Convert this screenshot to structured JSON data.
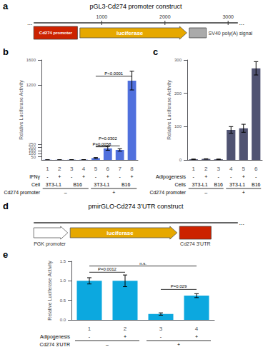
{
  "chart_data": [
    {
      "type": "diagram",
      "title": "a",
      "subtitle": "pGL3-Cd274 promoter construct",
      "annotations": [
        {
          "text": "...",
          "marker": "dots"
        },
        {
          "text": "1000",
          "marker": "tick"
        },
        {
          "text": "2000",
          "marker": "tick"
        },
        {
          "text": "3000",
          "marker": "tick"
        },
        {
          "text": "...",
          "marker": "dots"
        },
        {
          "text": "Cd274 promoter",
          "marker": "box-inside",
          "color": "#cc2200"
        },
        {
          "text": "luciferase",
          "marker": "arrow-inside",
          "color": "#E6A800"
        },
        {
          "text": "SV40 poly(A) signal",
          "marker": "box-right",
          "color": "#aaaaaa"
        }
      ]
    },
    {
      "type": "bar",
      "title": "b",
      "ylabel": "Relative Luciferase Activity",
      "categories": [
        "1",
        "2",
        "3",
        "4",
        "5",
        "6",
        "7",
        "8"
      ],
      "values": [
        2,
        2,
        3,
        4,
        30,
        185,
        160,
        1270
      ],
      "errors": [
        0.5,
        0.5,
        0.5,
        0.5,
        8,
        30,
        20,
        150
      ],
      "ylim": [
        0,
        1600
      ],
      "yticks": [
        0,
        50,
        100,
        150,
        200,
        250,
        1200,
        1600
      ],
      "grid": false,
      "annotations": [
        {
          "text": "P=0.0058",
          "from": "5",
          "to": "6",
          "y": 210
        },
        {
          "text": "P=0.0302",
          "from": "5",
          "to": "7",
          "y": 225
        },
        {
          "text": "P<0.0001",
          "from": "5",
          "to": "8",
          "y": 1340
        },
        {
          "row": 1,
          "text": "IFNγ"
        },
        {
          "row": 1,
          "text": "-",
          "from": "1",
          "to": "1"
        },
        {
          "row": 1,
          "text": "+",
          "from": "2",
          "to": "2"
        },
        {
          "row": 1,
          "text": "-",
          "from": "3",
          "to": "3"
        },
        {
          "row": 1,
          "text": "+",
          "from": "4",
          "to": "4"
        },
        {
          "row": 1,
          "text": "-",
          "from": "5",
          "to": "5"
        },
        {
          "row": 1,
          "text": "+",
          "from": "6",
          "to": "6"
        },
        {
          "row": 1,
          "text": "-",
          "from": "7",
          "to": "7"
        },
        {
          "row": 1,
          "text": "+",
          "from": "8",
          "to": "8"
        },
        {
          "row": 2,
          "text": "Cell"
        },
        {
          "row": 2,
          "text": "3T3-L1",
          "from": "1",
          "to": "2"
        },
        {
          "row": 2,
          "text": "B16",
          "from": "3",
          "to": "4"
        },
        {
          "row": 2,
          "text": "3T3-L1",
          "from": "5",
          "to": "6"
        },
        {
          "row": 2,
          "text": "B16",
          "from": "7",
          "to": "8"
        },
        {
          "row": 3,
          "text": "Cd274 promoter"
        },
        {
          "row": 3,
          "text": "–",
          "from": "1",
          "to": "4"
        },
        {
          "row": 3,
          "text": "+",
          "from": "5",
          "to": "8"
        }
      ]
    },
    {
      "type": "bar",
      "title": "c",
      "ylabel": "Relative Luciferase Activity",
      "categories": [
        "1",
        "2",
        "3",
        "4",
        "5",
        "6"
      ],
      "values": [
        2,
        3,
        2,
        90,
        95,
        275
      ],
      "errors": [
        0.5,
        0.5,
        0.5,
        10,
        12,
        20
      ],
      "ylim": [
        0,
        300
      ],
      "yticks": [
        0,
        100,
        200,
        300
      ],
      "grid": false,
      "annotations": [
        {
          "row": 1,
          "text": "Adipogenesis"
        },
        {
          "row": 1,
          "text": "-",
          "from": "1",
          "to": "1"
        },
        {
          "row": 1,
          "text": "+",
          "from": "2",
          "to": "2"
        },
        {
          "row": 1,
          "text": "-",
          "from": "3",
          "to": "3"
        },
        {
          "row": 1,
          "text": "-",
          "from": "4",
          "to": "4"
        },
        {
          "row": 1,
          "text": "+",
          "from": "5",
          "to": "5"
        },
        {
          "row": 1,
          "text": "-",
          "from": "6",
          "to": "6"
        },
        {
          "row": 2,
          "text": "Cells"
        },
        {
          "row": 2,
          "text": "3T3-L1",
          "from": "1",
          "to": "2"
        },
        {
          "row": 2,
          "text": "B16",
          "from": "3",
          "to": "3"
        },
        {
          "row": 2,
          "text": "3T3-L1",
          "from": "4",
          "to": "5"
        },
        {
          "row": 2,
          "text": "B16",
          "from": "6",
          "to": "6"
        },
        {
          "row": 3,
          "text": "Cd274 promoter"
        },
        {
          "row": 3,
          "text": "–",
          "from": "1",
          "to": "3"
        },
        {
          "row": 3,
          "text": "+",
          "from": "4",
          "to": "6"
        }
      ]
    },
    {
      "type": "diagram",
      "title": "d",
      "subtitle": "pmirGLO-Cd274 3’UTR construct",
      "annotations": [
        {
          "text": "PGK promoter",
          "marker": "arrow-below",
          "color": "#ffffff"
        },
        {
          "text": "luciferase",
          "marker": "arrow-inside",
          "color": "#E6A800"
        },
        {
          "text": "Cd274 3’UTR",
          "marker": "box-below",
          "color": "#cc2200"
        },
        {
          "text": "...",
          "marker": "dots"
        }
      ]
    },
    {
      "type": "bar",
      "title": "e",
      "ylabel": "Relative Luciferase Activity",
      "categories": [
        "1",
        "2",
        "3",
        "4"
      ],
      "values": [
        1.0,
        1.0,
        0.15,
        0.62
      ],
      "errors": [
        0.08,
        0.15,
        0.03,
        0.05
      ],
      "ylim": [
        0,
        1.5
      ],
      "yticks": [
        {
          "value": 0,
          "label": "0.0"
        },
        0.5,
        {
          "value": 1,
          "label": "1.0"
        },
        1.5
      ],
      "grid": false,
      "annotations": [
        {
          "text": "n.s.",
          "from": "1",
          "to": "4",
          "y": 1.38
        },
        {
          "text": "P=0.0012",
          "from": "1",
          "to": "2",
          "y": 1.22
        },
        {
          "text": "P=0.029",
          "from": "3",
          "to": "4",
          "y": 0.78
        },
        {
          "row": 1,
          "text": "Adipogenesis"
        },
        {
          "row": 1,
          "text": "-",
          "from": "1",
          "to": "1"
        },
        {
          "row": 1,
          "text": "+",
          "from": "2",
          "to": "2"
        },
        {
          "row": 1,
          "text": "-",
          "from": "3",
          "to": "3"
        },
        {
          "row": 1,
          "text": "+",
          "from": "4",
          "to": "4"
        },
        {
          "row": 2,
          "text": "Cd274 3’UTR"
        },
        {
          "row": 2,
          "text": "–",
          "from": "1",
          "to": "2"
        },
        {
          "row": 2,
          "text": "+",
          "from": "3",
          "to": "4"
        }
      ]
    }
  ]
}
